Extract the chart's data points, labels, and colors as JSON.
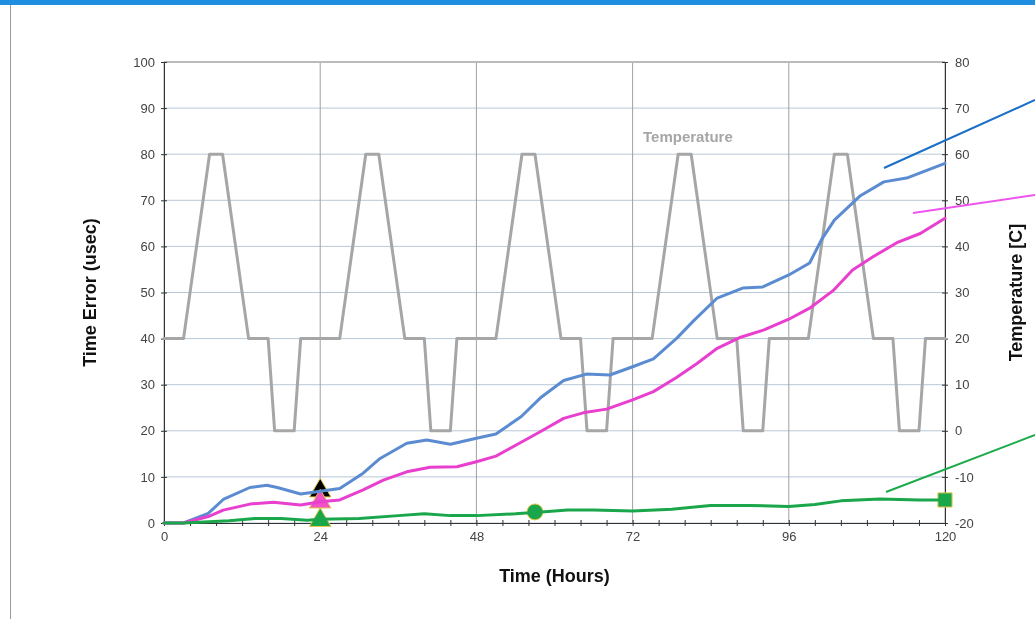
{
  "chart_data": {
    "type": "line",
    "xlabel": "Time (Hours)",
    "ylabel": "Time Error (usec)",
    "y2label": "Temperature [C]",
    "xlim": [
      0,
      120
    ],
    "xticks": [
      0,
      {
        "value": 4,
        "label": null
      },
      {
        "value": 8,
        "label": null
      },
      {
        "value": 12,
        "label": null
      },
      {
        "value": 16,
        "label": null
      },
      {
        "value": 20,
        "label": null
      },
      24,
      {
        "value": 28,
        "label": null
      },
      {
        "value": 32,
        "label": null
      },
      {
        "value": 36,
        "label": null
      },
      {
        "value": 40,
        "label": null
      },
      {
        "value": 44,
        "label": null
      },
      48,
      {
        "value": 52,
        "label": null
      },
      {
        "value": 56,
        "label": null
      },
      {
        "value": 60,
        "label": null
      },
      {
        "value": 64,
        "label": null
      },
      {
        "value": 68,
        "label": null
      },
      72,
      {
        "value": 76,
        "label": null
      },
      {
        "value": 80,
        "label": null
      },
      {
        "value": 84,
        "label": null
      },
      {
        "value": 88,
        "label": null
      },
      {
        "value": 92,
        "label": null
      },
      96,
      {
        "value": 100,
        "label": null
      },
      {
        "value": 104,
        "label": null
      },
      {
        "value": 108,
        "label": null
      },
      {
        "value": 112,
        "label": null
      },
      {
        "value": 116,
        "label": null
      },
      120
    ],
    "ylim": [
      0,
      100
    ],
    "yticks": [
      0,
      10,
      20,
      30,
      40,
      50,
      60,
      70,
      80,
      90,
      100
    ],
    "y2lim": [
      -20,
      80
    ],
    "y2ticks": [
      -20,
      -10,
      0,
      10,
      20,
      30,
      40,
      50,
      60,
      70,
      80
    ],
    "grid": true,
    "line_style": "solid",
    "marker": "none",
    "series": [
      {
        "name": "Temperature",
        "axis": "y2",
        "color": "#a6a6a6",
        "x": [
          0,
          3,
          7,
          9,
          13,
          16,
          17,
          20,
          21,
          27,
          31,
          33,
          37,
          40,
          41,
          44,
          45,
          51,
          55,
          57,
          61,
          64,
          65,
          68,
          69,
          75,
          79,
          81,
          85,
          88,
          89,
          92,
          93,
          99,
          103,
          105,
          109,
          112,
          113,
          116,
          117,
          120
        ],
        "values": [
          20,
          20,
          60,
          60,
          20,
          20,
          0,
          0,
          20,
          20,
          60,
          60,
          20,
          20,
          0,
          0,
          20,
          20,
          60,
          60,
          20,
          20,
          0,
          0,
          20,
          20,
          60,
          60,
          20,
          20,
          0,
          0,
          20,
          20,
          60,
          60,
          20,
          20,
          0,
          0,
          20,
          20
        ]
      },
      {
        "color": "#5b8bd0",
        "x": [
          0,
          3,
          6.8,
          9.1,
          13.2,
          15.8,
          17.4,
          21,
          24,
          27,
          30.6,
          33.2,
          37.3,
          40.4,
          44,
          48,
          51,
          54.9,
          57.8,
          61.4,
          64.9,
          68.5,
          72,
          75.2,
          78.8,
          81.4,
          85,
          89,
          92,
          96,
          99.2,
          101,
          103,
          107,
          110.6,
          114.3,
          120
        ],
        "values": [
          0,
          0,
          2.1,
          5.1,
          7.7,
          8.2,
          7.7,
          6.3,
          6.9,
          7.5,
          10.8,
          14,
          17.3,
          18,
          17.1,
          18.4,
          19.3,
          23.1,
          27.1,
          30.9,
          32.3,
          32.1,
          33.9,
          35.6,
          40.1,
          43.9,
          48.8,
          51,
          51.2,
          53.8,
          56.4,
          61.4,
          65.7,
          71,
          74,
          74.9,
          78
        ]
      },
      {
        "color": "#e83fcf",
        "x": [
          0,
          3,
          6.8,
          9.1,
          13.2,
          16.8,
          21,
          24,
          27,
          30.6,
          33.7,
          37.3,
          40.9,
          45,
          48,
          51,
          54.6,
          57.8,
          61.4,
          64.4,
          68,
          72,
          75.2,
          78.8,
          81.9,
          85,
          88.6,
          92.2,
          96,
          99.2,
          102.8,
          105.8,
          109,
          112.6,
          116.2,
          120
        ],
        "values": [
          0,
          0,
          1.4,
          2.8,
          4.1,
          4.5,
          3.9,
          4.6,
          5,
          7.2,
          9.3,
          11.1,
          12.1,
          12.2,
          13.3,
          14.5,
          17.3,
          19.8,
          22.7,
          23.9,
          24.7,
          26.7,
          28.5,
          31.6,
          34.6,
          37.9,
          40.3,
          41.9,
          44.2,
          46.6,
          50.4,
          54.9,
          57.8,
          60.8,
          62.8,
          66.1
        ]
      },
      {
        "color": "#1aa64a",
        "x": [
          0,
          3,
          10,
          14,
          18,
          22,
          24,
          30,
          36,
          40,
          44,
          48,
          54,
          58,
          62,
          66,
          72,
          78,
          84,
          90,
          96,
          100,
          104,
          110,
          116,
          120
        ],
        "values": [
          0,
          0,
          0.5,
          1,
          1,
          0.6,
          0.8,
          1,
          1.6,
          2,
          1.6,
          1.6,
          2,
          2.4,
          2.8,
          2.8,
          2.6,
          3,
          3.8,
          3.8,
          3.6,
          4,
          4.8,
          5.2,
          5,
          5
        ]
      },
      {
        "type": "scatter",
        "marker": "triangle",
        "color": "#000000",
        "x": [
          24
        ],
        "values": [
          7
        ]
      },
      {
        "type": "scatter",
        "marker": "triangle",
        "color": "#f050c8",
        "x": [
          24
        ],
        "values": [
          4.6
        ]
      },
      {
        "type": "scatter",
        "marker": "triangle",
        "color": "#1aa64a",
        "x": [
          24
        ],
        "values": [
          0.6
        ]
      },
      {
        "type": "scatter",
        "marker": "circle",
        "color": "#1aa64a",
        "x": [
          57
        ],
        "values": [
          2.4
        ]
      },
      {
        "type": "scatter",
        "marker": "square",
        "color": "#1aa64a",
        "x": [
          120
        ],
        "values": [
          5
        ]
      }
    ]
  }
}
